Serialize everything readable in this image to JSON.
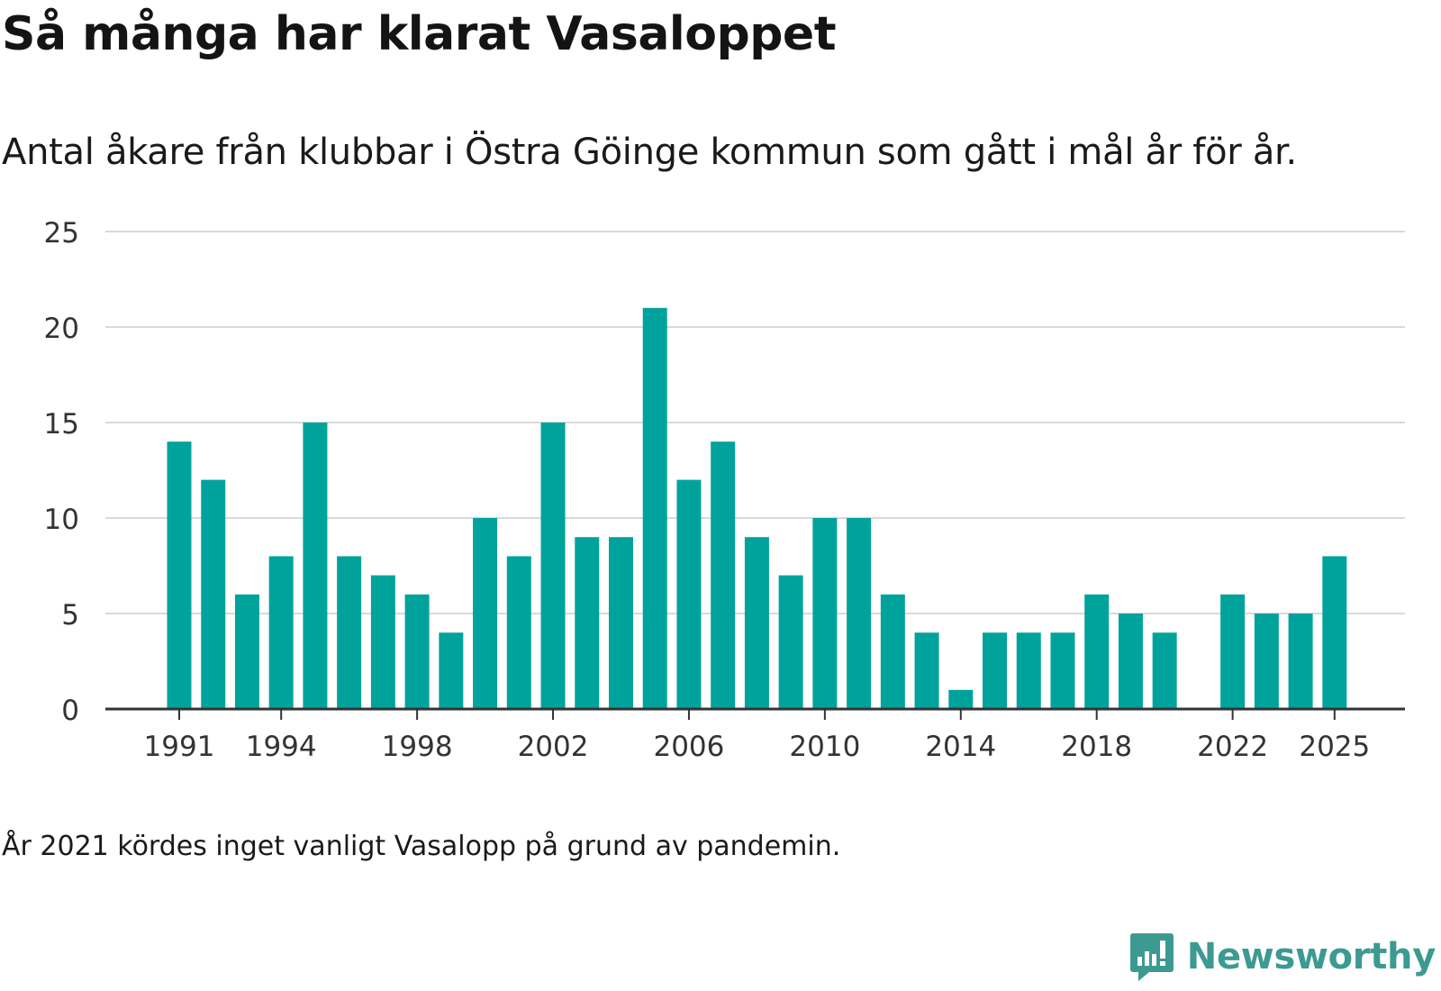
{
  "title": "Så många har klarat Vasaloppet",
  "subtitle": "Antal åkare från klubbar i Östra Göinge kommun som gått i mål år för år.",
  "footnote": "År 2021 kördes inget vanligt Vasalopp på grund av pandemin.",
  "brand": "Newsworthy",
  "colors": {
    "bar": "#00a39b",
    "grid": "#d9d9d9",
    "axis": "#333333",
    "brand": "#3c9a91"
  },
  "chart_data": {
    "type": "bar",
    "title": "Så många har klarat Vasaloppet",
    "xlabel": "",
    "ylabel": "",
    "categories": [
      1991,
      1992,
      1993,
      1994,
      1995,
      1996,
      1997,
      1998,
      1999,
      2000,
      2001,
      2002,
      2003,
      2004,
      2005,
      2006,
      2007,
      2008,
      2009,
      2010,
      2011,
      2012,
      2013,
      2014,
      2015,
      2016,
      2017,
      2018,
      2019,
      2020,
      2021,
      2022,
      2023,
      2024,
      2025
    ],
    "values": [
      14,
      12,
      6,
      8,
      15,
      8,
      7,
      6,
      4,
      10,
      8,
      15,
      9,
      9,
      21,
      12,
      14,
      9,
      7,
      10,
      10,
      6,
      4,
      1,
      4,
      4,
      4,
      6,
      5,
      4,
      null,
      6,
      5,
      5,
      8
    ],
    "ylim": [
      0,
      25
    ],
    "yticks": [
      0,
      5,
      10,
      15,
      20,
      25
    ],
    "xtick_labels": [
      "1991",
      "1994",
      "1998",
      "2002",
      "2006",
      "2010",
      "2014",
      "2018",
      "2022",
      "2025"
    ],
    "grid": true
  }
}
